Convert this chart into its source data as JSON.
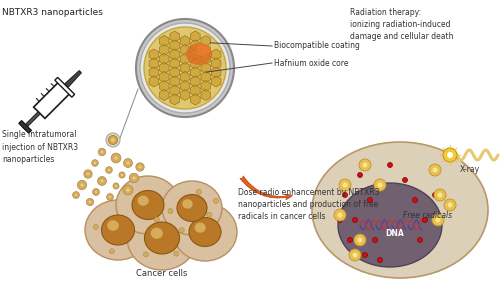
{
  "bg_color": "#ffffff",
  "title_text": "NBTXR3 nanoparticles",
  "label_syringe": "Single intratumoral\ninjection of NBTXR3\nnanoparticles",
  "label_biocompat": "Biocompatible coating",
  "label_hafnium": "Hafnium oxide core",
  "label_cancer": "Cancer cells",
  "label_dose": "Dose radio enhancement by NBTXR3\nnanoparticles and production of free\nradicals in cancer cells",
  "label_radiation": "Radiation therapy:\nionizing radiation-induced\ndamage and cellular death",
  "label_xray": "X-ray",
  "label_free_rad": "Free radicals",
  "label_dna": "DNA",
  "cell_fill": "#d8c0a0",
  "cell_edge": "#b89060",
  "nucleus_fill": "#b87828",
  "nucleus_edge": "#8a5810",
  "big_cell_fill": "#ddd0b8",
  "np_color": "#d4aa60",
  "np_edge": "#b08840",
  "arrow_color1": "#e09050",
  "arrow_color2": "#cc6030",
  "xray_color": "#e8c870",
  "free_radical_color": "#cc1010",
  "dna_color_blue": "#4040aa",
  "dna_color_red": "#cc3030",
  "dark_nucleus_fill": "#706070",
  "dark_nucleus_edge": "#504058"
}
